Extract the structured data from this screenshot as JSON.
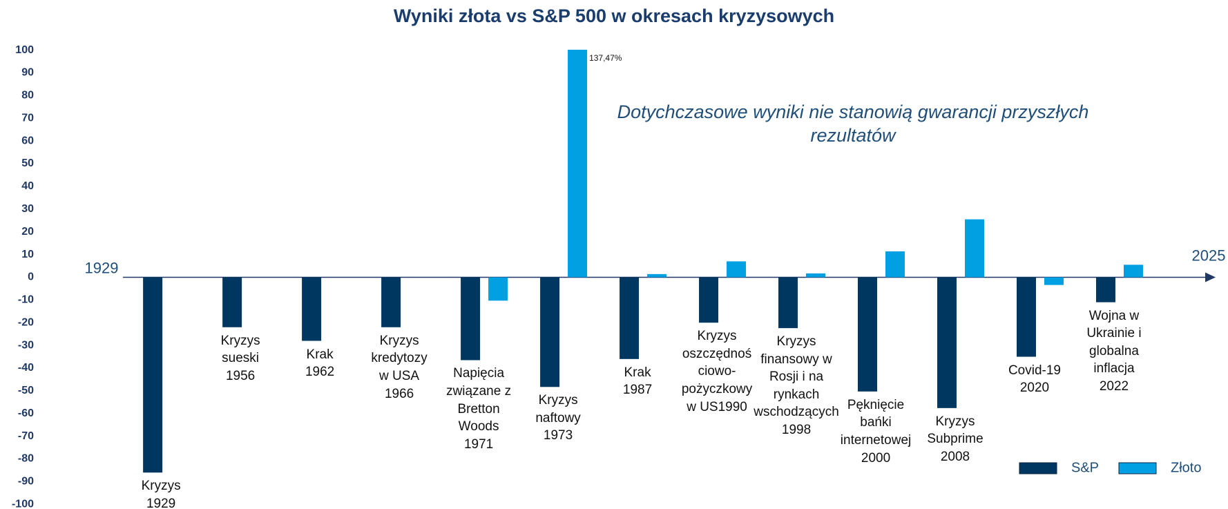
{
  "chart_data": {
    "type": "bar",
    "title": "Wyniki złota vs S&P 500 w okresach kryzysowych",
    "annotation": "Dotychczasowe wyniki nie stanowią gwarancji przyszłych rezultatów",
    "x_start_label": "1929",
    "x_end_label": "2025",
    "categories": [
      "Kryzys\n1929",
      "Kryzys\nsueski\n1956",
      "Krak\n1962",
      "Kryzys\nkredytozy\nw USA\n1966",
      "Napięcia\nzwiązane z\nBretton\nWoods\n1971",
      "Kryzys\nnaftowy\n1973",
      "Krak\n1987",
      "Kryzys\noszczędnoś\nciowo-\npożyczkowy\nw US1990",
      "Kryzys\nfinansowy w\nRosji i na\nrynkach\nwschodzących\n1998",
      "Pęknięcie\nbańki\ninternetowej\n2000",
      "Kryzys\nSubprime\n2008",
      "Covid-19\n2020",
      "Wojna w\nUkrainie i\nglobalna\ninflacja\n2022"
    ],
    "series": [
      {
        "name": "S&P",
        "color": "#003761",
        "values": [
          -86,
          -22,
          -28,
          -22,
          -36.5,
          -48.3,
          -36,
          -20,
          -22.4,
          -50.3,
          -57.6,
          -35,
          -11
        ]
      },
      {
        "name": "Złoto",
        "color": "#00a0e3",
        "values": [
          0,
          0,
          0,
          0,
          -10.3,
          137.47,
          1.4,
          7,
          1.7,
          11.4,
          25.5,
          -3.4,
          5.5
        ],
        "value_labels": [
          null,
          null,
          null,
          null,
          null,
          "137,47%",
          null,
          null,
          null,
          null,
          null,
          null,
          null
        ]
      }
    ],
    "ylim": [
      -100,
      100
    ],
    "yticks": [
      -100,
      -90,
      -80,
      -70,
      -60,
      -50,
      -40,
      -30,
      -20,
      -10,
      0,
      10,
      20,
      30,
      40,
      50,
      60,
      70,
      80,
      90,
      100
    ],
    "legend": "lower right"
  }
}
